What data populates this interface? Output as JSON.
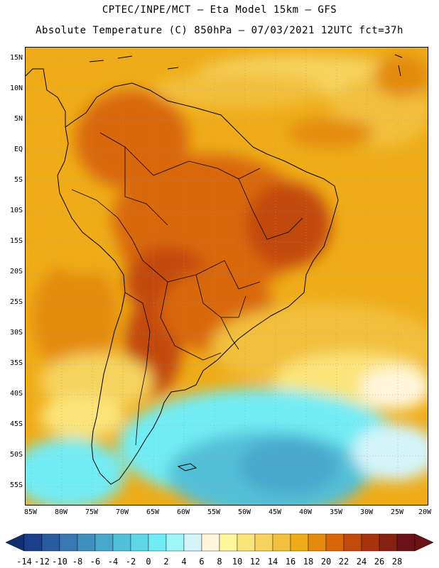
{
  "header": {
    "line1": "CPTEC/INPE/MCT –  Eta Model 15km – GFS",
    "line2": "Absolute Temperature (C) 850hPa – 07/03/2021 12UTC fct=37h"
  },
  "map": {
    "lat_ticks": [
      "15N",
      "10N",
      "5N",
      "EQ",
      "5S",
      "10S",
      "15S",
      "20S",
      "25S",
      "30S",
      "35S",
      "40S",
      "45S",
      "50S",
      "55S"
    ],
    "lon_ticks": [
      "85W",
      "80W",
      "75W",
      "70W",
      "65W",
      "60W",
      "55W",
      "50W",
      "45W",
      "40W",
      "35W",
      "30W",
      "25W",
      "20W"
    ],
    "extent": {
      "lon_min": -86,
      "lon_max": -20,
      "lat_min": -58,
      "lat_max": 17
    },
    "background_color": "#f0a820"
  },
  "colorbar": {
    "labels": [
      "-14",
      "-12",
      "-10",
      "-8",
      "-6",
      "-4",
      "-2",
      "0",
      "2",
      "4",
      "6",
      "8",
      "10",
      "12",
      "14",
      "16",
      "18",
      "20",
      "22",
      "24",
      "26",
      "28"
    ],
    "colors": [
      "#1c3f8c",
      "#2a5aa0",
      "#3a78b4",
      "#3f8fbf",
      "#48a8cc",
      "#52c0d8",
      "#5fd6e6",
      "#72ecf4",
      "#9ef6f8",
      "#d4f4fa",
      "#fff6dc",
      "#fff59a",
      "#fbe47a",
      "#f6d35e",
      "#f2c03e",
      "#efac18",
      "#e48a0c",
      "#d9670a",
      "#c24a0c",
      "#a8320e",
      "#862010",
      "#6b1218"
    ]
  }
}
